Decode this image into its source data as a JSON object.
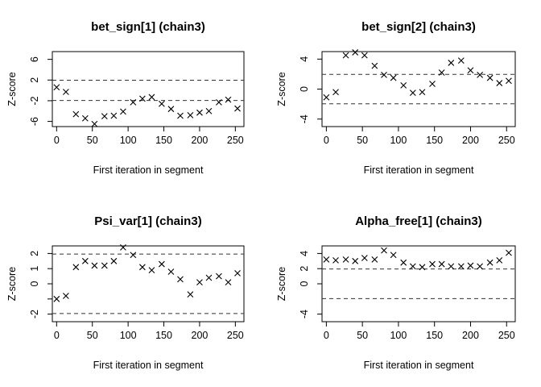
{
  "chart_data": [
    {
      "type": "scatter",
      "title": "bet_sign[1] (chain3)",
      "xlabel": "First iteration in segment",
      "ylabel": "Z-score",
      "xlim": [
        -6,
        262
      ],
      "ylim": [
        -7,
        7.5
      ],
      "xticks": [
        0,
        50,
        100,
        150,
        200,
        250
      ],
      "yticks": [
        -6,
        -2,
        2,
        6
      ],
      "ytick_labels": [
        "-6",
        "-2",
        "2",
        "6"
      ],
      "reference_lines": [
        1.96,
        -1.96
      ],
      "marker": "x",
      "series": [
        {
          "x": [
            0,
            13,
            27,
            40,
            53,
            67,
            80,
            93,
            107,
            120,
            133,
            147,
            160,
            173,
            187,
            200,
            213,
            227,
            240,
            253
          ],
          "y": [
            0.6,
            -0.3,
            -4.6,
            -5.4,
            -6.5,
            -5.0,
            -4.9,
            -4.1,
            -2.3,
            -1.6,
            -1.3,
            -2.6,
            -3.6,
            -4.9,
            -4.8,
            -4.3,
            -4.0,
            -2.3,
            -1.8,
            -3.5
          ]
        }
      ]
    },
    {
      "type": "scatter",
      "title": "bet_sign[2] (chain3)",
      "xlabel": "First iteration in segment",
      "ylabel": "Z-score",
      "xlim": [
        -6,
        262
      ],
      "ylim": [
        -5,
        5
      ],
      "xticks": [
        0,
        50,
        100,
        150,
        200,
        250
      ],
      "yticks": [
        -4,
        0,
        4
      ],
      "ytick_labels": [
        "-4",
        "0",
        "4"
      ],
      "reference_lines": [
        1.96,
        -1.96
      ],
      "marker": "x",
      "series": [
        {
          "x": [
            0,
            13,
            27,
            40,
            53,
            67,
            80,
            93,
            107,
            120,
            133,
            147,
            160,
            173,
            187,
            200,
            213,
            227,
            240,
            253
          ],
          "y": [
            -1.1,
            -0.4,
            4.5,
            4.9,
            4.5,
            3.1,
            1.9,
            1.5,
            0.5,
            -0.5,
            -0.4,
            0.7,
            2.2,
            3.5,
            3.8,
            2.5,
            1.9,
            1.5,
            0.8,
            1.1
          ]
        }
      ]
    },
    {
      "type": "scatter",
      "title": "Psi_var[1] (chain3)",
      "xlabel": "First iteration in segment",
      "ylabel": "Z-score",
      "xlim": [
        -6,
        262
      ],
      "ylim": [
        -2.5,
        2.5
      ],
      "xticks": [
        0,
        50,
        100,
        150,
        200,
        250
      ],
      "yticks": [
        -2,
        -1,
        0,
        1,
        2
      ],
      "ytick_labels": [
        "-2",
        "",
        "0",
        "1",
        "2"
      ],
      "reference_lines": [
        1.96,
        -1.96
      ],
      "marker": "x",
      "series": [
        {
          "x": [
            0,
            13,
            27,
            40,
            53,
            67,
            80,
            93,
            107,
            120,
            133,
            147,
            160,
            173,
            187,
            200,
            213,
            227,
            240,
            253
          ],
          "y": [
            -1.0,
            -0.8,
            1.1,
            1.5,
            1.2,
            1.2,
            1.5,
            2.4,
            1.9,
            1.1,
            0.9,
            1.3,
            0.8,
            0.3,
            -0.7,
            0.1,
            0.4,
            0.5,
            0.1,
            0.7
          ]
        }
      ]
    },
    {
      "type": "scatter",
      "title": "Alpha_free[1] (chain3)",
      "xlabel": "First iteration in segment",
      "ylabel": "Z-score",
      "xlim": [
        -6,
        262
      ],
      "ylim": [
        -5,
        5
      ],
      "xticks": [
        0,
        50,
        100,
        150,
        200,
        250
      ],
      "yticks": [
        -4,
        0,
        2,
        4
      ],
      "ytick_labels": [
        "-4",
        "0",
        "2",
        "4"
      ],
      "reference_lines": [
        1.96,
        -1.96
      ],
      "marker": "x",
      "series": [
        {
          "x": [
            0,
            13,
            27,
            40,
            53,
            67,
            80,
            93,
            107,
            120,
            133,
            147,
            160,
            173,
            187,
            200,
            213,
            227,
            240,
            253
          ],
          "y": [
            3.2,
            3.1,
            3.2,
            3.0,
            3.4,
            3.2,
            4.4,
            3.8,
            2.8,
            2.3,
            2.2,
            2.6,
            2.6,
            2.3,
            2.3,
            2.4,
            2.3,
            2.8,
            3.1,
            4.1
          ]
        }
      ]
    }
  ]
}
